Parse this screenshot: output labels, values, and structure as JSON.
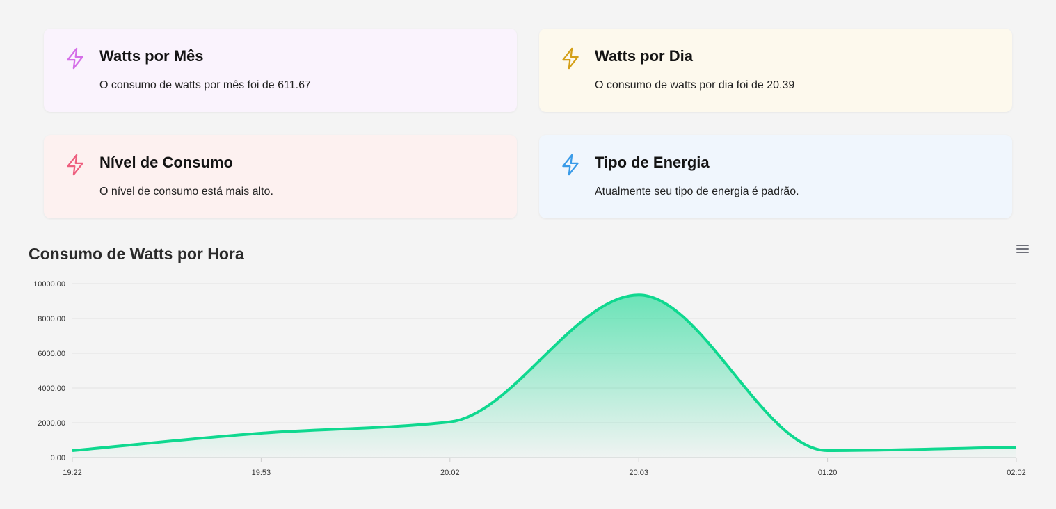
{
  "cards": {
    "month": {
      "title": "Watts por Mês",
      "desc": "O consumo de watts por mês foi de 611.67",
      "icon": "lightning-bolt-icon",
      "color": "#d56ee8"
    },
    "day": {
      "title": "Watts por Dia",
      "desc": "O consumo de watts por dia foi de 20.39",
      "icon": "lightning-bolt-icon",
      "color": "#d4a018"
    },
    "level": {
      "title": "Nível de Consumo",
      "desc": "O nível de consumo está mais alto.",
      "icon": "lightning-bolt-icon",
      "color": "#ee5f7f"
    },
    "type": {
      "title": "Tipo de Energia",
      "desc": "Atualmente seu tipo de energia é padrão.",
      "icon": "lightning-bolt-icon",
      "color": "#3a9be8"
    }
  },
  "chart_data": {
    "type": "area",
    "title": "Consumo de Watts por Hora",
    "categories": [
      "19:22",
      "19:53",
      "20:02",
      "20:03",
      "01:20",
      "02:02"
    ],
    "values": [
      400,
      1400,
      2050,
      9350,
      400,
      600
    ],
    "yticks": [
      "0.00",
      "2000.00",
      "4000.00",
      "6000.00",
      "8000.00",
      "10000.00"
    ],
    "ylim": [
      0,
      10000
    ],
    "grid": true,
    "legend": "none",
    "line_color": "#0fd88f",
    "menu_icon": "hamburger-menu-icon"
  }
}
